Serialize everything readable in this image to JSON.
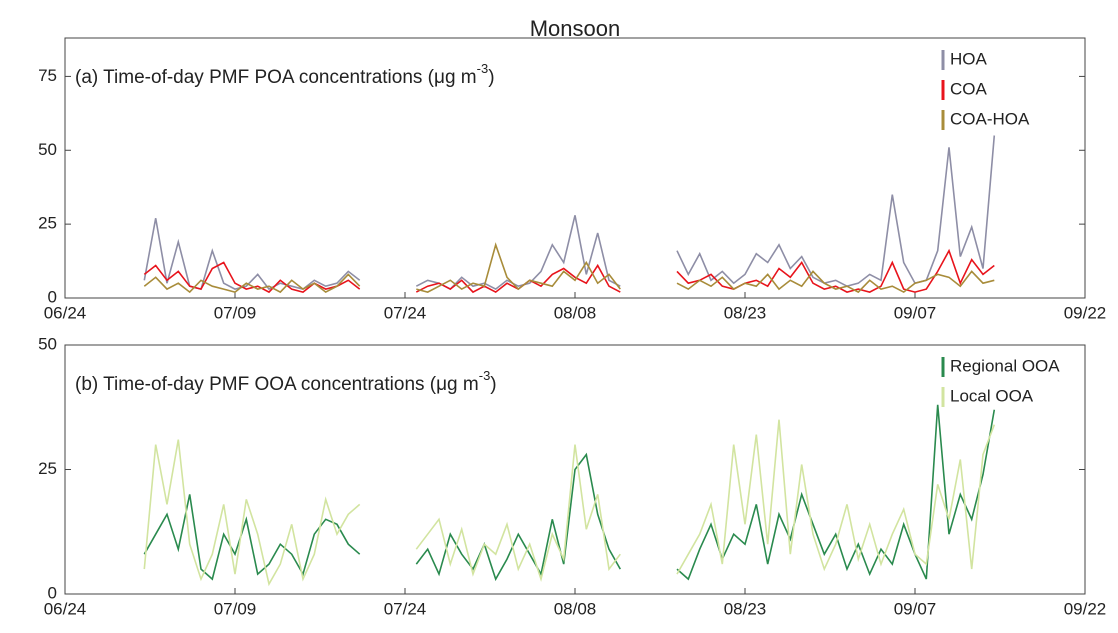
{
  "chart_data": [
    {
      "type": "line",
      "title": "Monsoon",
      "annotation": {
        "text": "(a) Time-of-day PMF POA concentrations (μg m",
        "superscript": "-3",
        "suffix": ")"
      },
      "x": [
        "07/01",
        "07/02",
        "07/03",
        "07/04",
        "07/05",
        "07/06",
        "07/07",
        "07/08",
        "07/09",
        "07/10",
        "07/11",
        "07/12",
        "07/13",
        "07/14",
        "07/15",
        "07/16",
        "07/17",
        "07/18",
        "07/19",
        "07/20",
        "07/22",
        "07/25",
        "07/26",
        "07/27",
        "07/28",
        "07/29",
        "07/30",
        "07/31",
        "08/01",
        "08/02",
        "08/03",
        "08/04",
        "08/05",
        "08/06",
        "08/07",
        "08/08",
        "08/09",
        "08/10",
        "08/11",
        "08/12",
        "08/15",
        "08/17",
        "08/18",
        "08/19",
        "08/20",
        "08/21",
        "08/22",
        "08/23",
        "08/24",
        "08/25",
        "08/26",
        "08/27",
        "08/28",
        "08/29",
        "08/30",
        "08/31",
        "09/01",
        "09/02",
        "09/03",
        "09/04",
        "09/05",
        "09/06",
        "09/07",
        "09/08",
        "09/09",
        "09/10",
        "09/11",
        "09/12",
        "09/13",
        "09/14"
      ],
      "xlim": [
        "06/24",
        "09/22"
      ],
      "xticks": [
        "06/24",
        "07/09",
        "07/24",
        "08/08",
        "08/23",
        "09/07",
        "09/22"
      ],
      "ylim": [
        0,
        88
      ],
      "yticks": [
        0,
        25,
        50,
        75
      ],
      "legend": "upper right",
      "series": [
        {
          "name": "HOA",
          "color": "#8e8ea6",
          "values": [
            6,
            27,
            5,
            19,
            4,
            3,
            16,
            5,
            3,
            4,
            8,
            3,
            5,
            4,
            3,
            6,
            4,
            5,
            9,
            6,
            null,
            4,
            6,
            5,
            3,
            7,
            4,
            5,
            3,
            6,
            4,
            5,
            9,
            18,
            12,
            28,
            8,
            22,
            6,
            4,
            null,
            16,
            8,
            15,
            6,
            9,
            5,
            8,
            15,
            12,
            18,
            10,
            14,
            7,
            5,
            6,
            4,
            5,
            8,
            6,
            35,
            12,
            5,
            6,
            16,
            51,
            14,
            24,
            10,
            55
          ]
        },
        {
          "name": "COA",
          "color": "#e8141c",
          "values": [
            8,
            11,
            6,
            9,
            4,
            3,
            10,
            12,
            5,
            3,
            4,
            2,
            6,
            3,
            2,
            5,
            3,
            4,
            6,
            3,
            null,
            2,
            4,
            5,
            3,
            6,
            2,
            4,
            2,
            5,
            3,
            6,
            4,
            8,
            10,
            7,
            5,
            11,
            4,
            2,
            null,
            9,
            5,
            6,
            8,
            4,
            3,
            5,
            6,
            4,
            10,
            7,
            12,
            5,
            3,
            4,
            2,
            3,
            2,
            4,
            12,
            3,
            2,
            3,
            9,
            16,
            5,
            13,
            8,
            11
          ]
        },
        {
          "name": "COA-HOA",
          "color": "#a88c3a",
          "values": [
            4,
            7,
            3,
            5,
            2,
            6,
            4,
            3,
            2,
            5,
            3,
            4,
            2,
            6,
            3,
            5,
            2,
            4,
            8,
            4,
            null,
            3,
            2,
            4,
            6,
            3,
            5,
            4,
            18,
            7,
            3,
            6,
            5,
            4,
            9,
            6,
            12,
            5,
            8,
            3,
            null,
            5,
            3,
            6,
            4,
            7,
            3,
            5,
            4,
            8,
            3,
            6,
            4,
            9,
            5,
            3,
            4,
            2,
            6,
            3,
            4,
            2,
            5,
            6,
            8,
            7,
            4,
            9,
            5,
            6
          ]
        }
      ]
    },
    {
      "type": "line",
      "annotation": {
        "text": "(b) Time-of-day PMF OOA concentrations (μg m",
        "superscript": "-3",
        "suffix": ")"
      },
      "x": [
        "07/01",
        "07/02",
        "07/03",
        "07/04",
        "07/05",
        "07/06",
        "07/07",
        "07/08",
        "07/09",
        "07/10",
        "07/11",
        "07/12",
        "07/13",
        "07/14",
        "07/15",
        "07/16",
        "07/17",
        "07/18",
        "07/19",
        "07/20",
        "07/22",
        "07/25",
        "07/26",
        "07/27",
        "07/28",
        "07/29",
        "07/30",
        "07/31",
        "08/01",
        "08/02",
        "08/03",
        "08/04",
        "08/05",
        "08/06",
        "08/07",
        "08/08",
        "08/09",
        "08/10",
        "08/11",
        "08/12",
        "08/15",
        "08/17",
        "08/18",
        "08/19",
        "08/20",
        "08/21",
        "08/22",
        "08/23",
        "08/24",
        "08/25",
        "08/26",
        "08/27",
        "08/28",
        "08/29",
        "08/30",
        "08/31",
        "09/01",
        "09/02",
        "09/03",
        "09/04",
        "09/05",
        "09/06",
        "09/07",
        "09/08",
        "09/09",
        "09/10",
        "09/11",
        "09/12",
        "09/13",
        "09/14"
      ],
      "xlim": [
        "06/24",
        "09/22"
      ],
      "xticks": [
        "06/24",
        "07/09",
        "07/24",
        "08/08",
        "08/23",
        "09/07",
        "09/22"
      ],
      "ylim": [
        0,
        50
      ],
      "yticks": [
        0,
        25,
        50
      ],
      "legend": "upper right",
      "series": [
        {
          "name": "Regional OOA",
          "color": "#2a8a4e",
          "values": [
            8,
            12,
            16,
            9,
            20,
            5,
            3,
            12,
            8,
            15,
            4,
            6,
            10,
            8,
            4,
            12,
            15,
            14,
            10,
            8,
            null,
            6,
            9,
            4,
            12,
            8,
            5,
            10,
            3,
            7,
            12,
            8,
            4,
            15,
            6,
            25,
            28,
            16,
            9,
            5,
            null,
            5,
            3,
            9,
            14,
            7,
            12,
            10,
            18,
            6,
            16,
            11,
            20,
            14,
            8,
            12,
            5,
            10,
            4,
            9,
            6,
            14,
            8,
            3,
            38,
            12,
            20,
            15,
            24,
            37
          ]
        },
        {
          "name": "Local OOA",
          "color": "#d2e4a0",
          "values": [
            5,
            30,
            18,
            31,
            10,
            3,
            8,
            18,
            4,
            19,
            12,
            2,
            6,
            14,
            3,
            8,
            19,
            12,
            16,
            18,
            null,
            9,
            12,
            15,
            6,
            13,
            4,
            10,
            8,
            14,
            5,
            10,
            3,
            12,
            7,
            30,
            13,
            20,
            5,
            8,
            null,
            4,
            8,
            12,
            18,
            6,
            30,
            14,
            32,
            10,
            35,
            8,
            26,
            12,
            5,
            10,
            18,
            7,
            14,
            6,
            12,
            17,
            8,
            6,
            22,
            15,
            27,
            5,
            28,
            34
          ]
        }
      ]
    }
  ]
}
